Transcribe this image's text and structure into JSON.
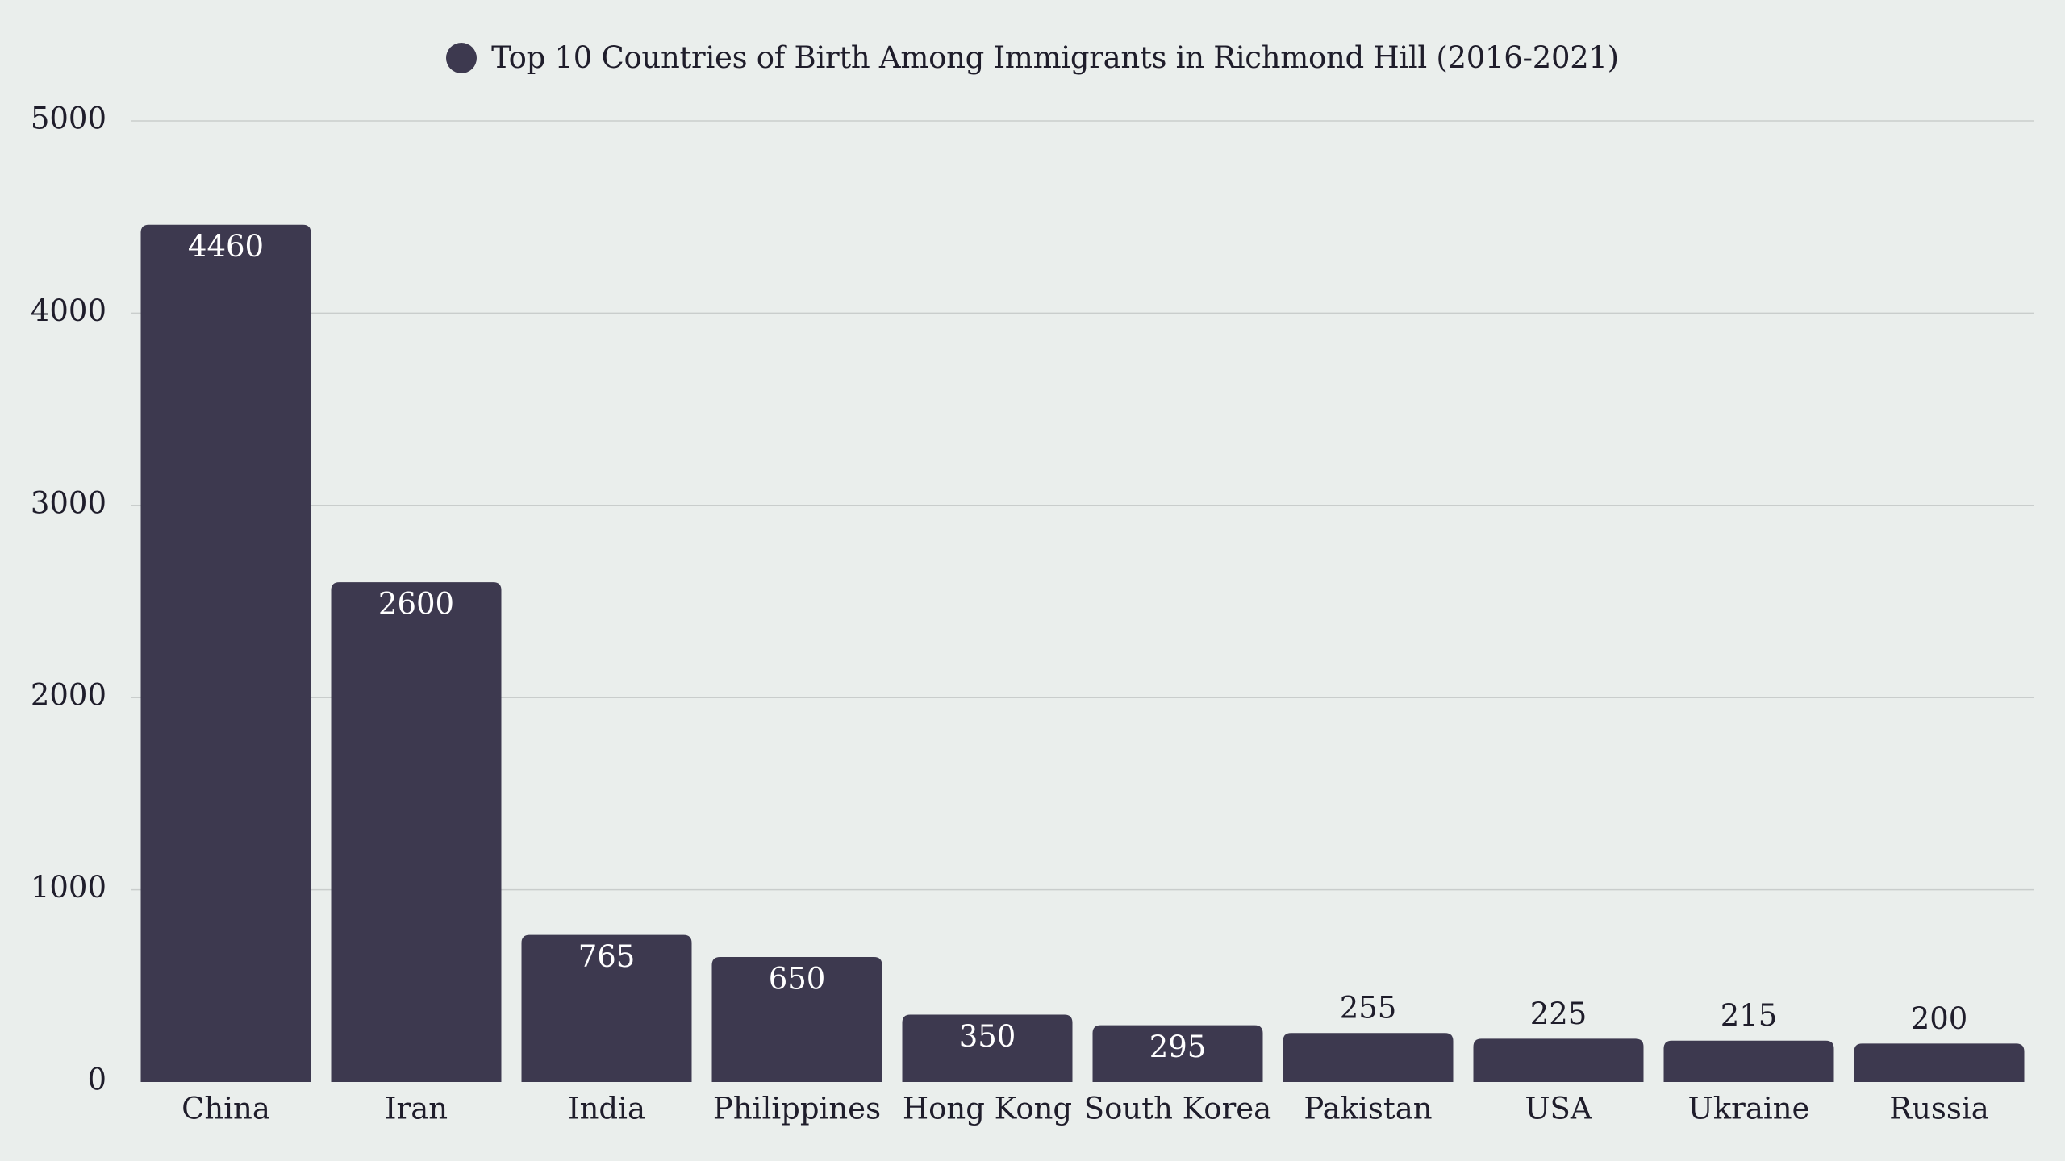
{
  "chart_data": {
    "type": "bar",
    "title": "",
    "xlabel": "",
    "ylabel": "",
    "legend": {
      "position": "top-center",
      "entries": [
        "Top 10 Countries of Birth Among Immigrants in Richmond Hill (2016-2021)"
      ]
    },
    "categories": [
      "China",
      "Iran",
      "India",
      "Philippines",
      "Hong Kong",
      "South Korea",
      "Pakistan",
      "USA",
      "Ukraine",
      "Russia"
    ],
    "series": [
      {
        "name": "Top 10 Countries of Birth Among Immigrants in Richmond Hill (2016-2021)",
        "values": [
          4460,
          2600,
          765,
          650,
          350,
          295,
          255,
          225,
          215,
          200
        ]
      }
    ],
    "data_labels": [
      "4460",
      "2600",
      "765",
      "650",
      "350",
      "295",
      "255",
      "225",
      "215",
      "200"
    ],
    "ylim": [
      0,
      5000
    ],
    "yticks": [
      0,
      1000,
      2000,
      3000,
      4000,
      5000
    ],
    "ytick_labels": [
      "0",
      "1000",
      "2000",
      "3000",
      "4000",
      "5000"
    ],
    "grid": true,
    "colors": {
      "bar": "#3d394f",
      "background": "#eaeeec",
      "grid": "#c9cdcc",
      "text": "#1f1d2b",
      "label_inside": "#ffffff"
    }
  }
}
